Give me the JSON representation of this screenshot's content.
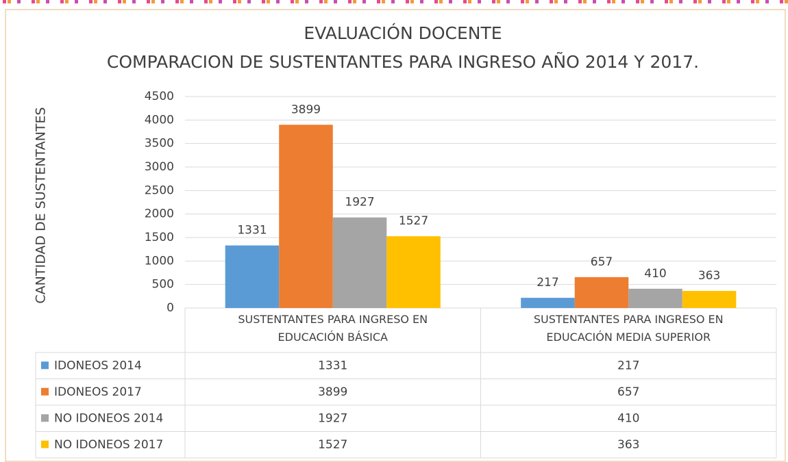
{
  "chart_data": {
    "type": "bar",
    "title": "EVALUACIÓN DOCENTE",
    "subtitle": "COMPARACION DE SUSTENTANTES PARA INGRESO  AÑO 2014 Y 2017.",
    "y_label": "CANTIDAD DE SUSTENTANTES",
    "categories": [
      "SUSTENTANTES PARA INGRESO EN EDUCACIÓN BÁSICA",
      "SUSTENTANTES PARA INGRESO EN EDUCACIÓN MEDIA SUPERIOR"
    ],
    "series": [
      {
        "name": "IDONEOS 2014",
        "color": "#5b9bd5",
        "values": [
          1331,
          217
        ]
      },
      {
        "name": "IDONEOS 2017",
        "color": "#ed7d31",
        "values": [
          3899,
          657
        ]
      },
      {
        "name": "NO IDONEOS 2014",
        "color": "#a5a5a5",
        "values": [
          1927,
          410
        ]
      },
      {
        "name": "NO IDONEOS 2017",
        "color": "#ffc000",
        "values": [
          1527,
          363
        ]
      }
    ],
    "ylim": [
      0,
      4500
    ],
    "yticks": [
      0,
      500,
      1000,
      1500,
      2000,
      2500,
      3000,
      3500,
      4000,
      4500
    ],
    "grid": true,
    "data_table": true
  }
}
